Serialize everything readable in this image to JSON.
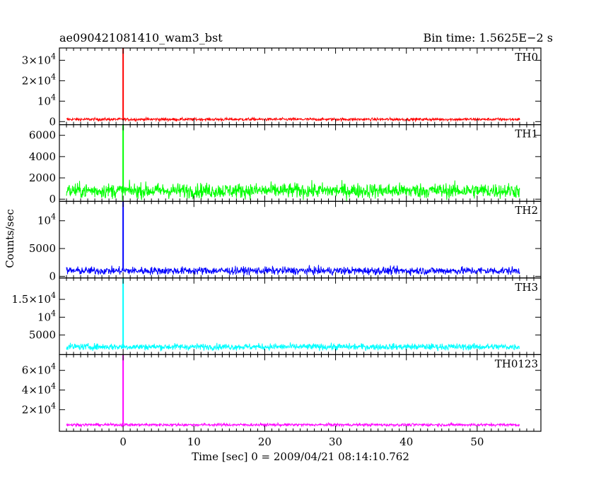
{
  "header": {
    "title_left": "ae090421081410_wam3_bst",
    "title_right": "Bin time: 1.5625E−2 s"
  },
  "chart_data": {
    "type": "line",
    "xlabel": "Time [sec] 0 = 2009/04/21 08:14:10.762",
    "ylabel": "Counts/sec",
    "xlim": [
      -9,
      59
    ],
    "x_ticks": [
      0,
      10,
      20,
      30,
      40,
      50
    ],
    "x_start": -8,
    "x_end": 56,
    "burst_time": 0,
    "panels": [
      {
        "name": "TH0",
        "color": "#ff0000",
        "ylim": [
          -1500,
          36000
        ],
        "y_ticks": [
          {
            "v": 0,
            "label": "0"
          },
          {
            "v": 10000,
            "label": "10^4"
          },
          {
            "v": 20000,
            "label": "2×10^4"
          },
          {
            "v": 30000,
            "label": "3×10^4"
          }
        ],
        "baseline": 1100,
        "noise": 350,
        "peak": 36000
      },
      {
        "name": "TH1",
        "color": "#00ff00",
        "ylim": [
          -200,
          7000
        ],
        "y_ticks": [
          {
            "v": 0,
            "label": "0"
          },
          {
            "v": 2000,
            "label": "2000"
          },
          {
            "v": 4000,
            "label": "4000"
          },
          {
            "v": 6000,
            "label": "6000"
          }
        ],
        "baseline": 800,
        "noise": 350,
        "peak": 7000
      },
      {
        "name": "TH2",
        "color": "#0000ff",
        "ylim": [
          -300,
          13500
        ],
        "y_ticks": [
          {
            "v": 0,
            "label": "0"
          },
          {
            "v": 5000,
            "label": "5000"
          },
          {
            "v": 10000,
            "label": "10^4"
          }
        ],
        "baseline": 1000,
        "noise": 350,
        "peak": 13500
      },
      {
        "name": "TH3",
        "color": "#00ffff",
        "ylim": [
          -500,
          21000
        ],
        "y_ticks": [
          {
            "v": 5000,
            "label": "5000"
          },
          {
            "v": 10000,
            "label": "10^4"
          },
          {
            "v": 15000,
            "label": "1.5×10^4"
          }
        ],
        "baseline": 1700,
        "noise": 450,
        "peak": 21000
      },
      {
        "name": "TH0123",
        "color": "#ff00ff",
        "ylim": [
          -2000,
          76000
        ],
        "y_ticks": [
          {
            "v": 20000,
            "label": "2×10^4"
          },
          {
            "v": 40000,
            "label": "4×10^4"
          },
          {
            "v": 60000,
            "label": "6×10^4"
          }
        ],
        "baseline": 4600,
        "noise": 700,
        "peak": 76000
      }
    ]
  }
}
